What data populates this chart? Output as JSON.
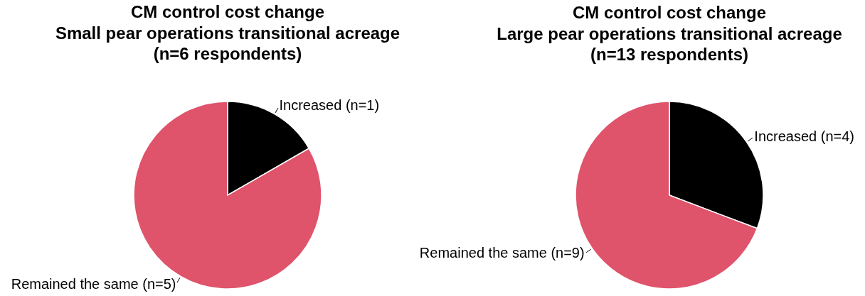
{
  "chart_data": [
    {
      "type": "pie",
      "title": "CM control cost change\nSmall pear operations transitional acreage\n(n=6 respondents)",
      "categories": [
        "Increased (n=1)",
        "Remained the same (n=5)"
      ],
      "values": [
        1,
        5
      ],
      "colors": [
        "#000000",
        "#df536b"
      ]
    },
    {
      "type": "pie",
      "title": "CM control cost change\nLarge pear operations transitional acreage\n(n=13 respondents)",
      "categories": [
        "Increased (n=4)",
        "Remained the same (n=9)"
      ],
      "values": [
        4,
        9
      ],
      "colors": [
        "#000000",
        "#df536b"
      ]
    }
  ]
}
